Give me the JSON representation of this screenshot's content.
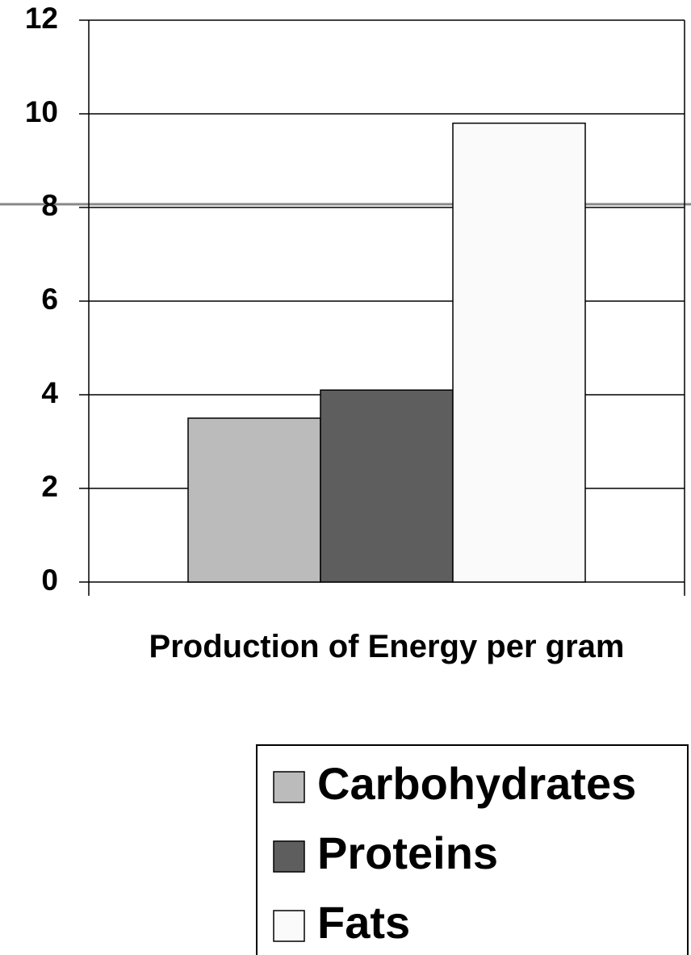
{
  "chart_data": {
    "type": "bar",
    "x_label": "Production of Energy per gram",
    "categories": [
      null
    ],
    "series": [
      {
        "name": "Carbohydrates",
        "color": "#bbbbbb",
        "values": [
          3.5
        ]
      },
      {
        "name": "Proteins",
        "color": "#5e5e5e",
        "values": [
          4.1
        ]
      },
      {
        "name": "Fats",
        "color": "#fafafa",
        "values": [
          9.8
        ]
      }
    ],
    "ylim": [
      0,
      12
    ],
    "yticks": [
      0,
      2,
      4,
      6,
      8,
      10,
      12
    ],
    "grid": true,
    "legend": "bottom-right"
  }
}
